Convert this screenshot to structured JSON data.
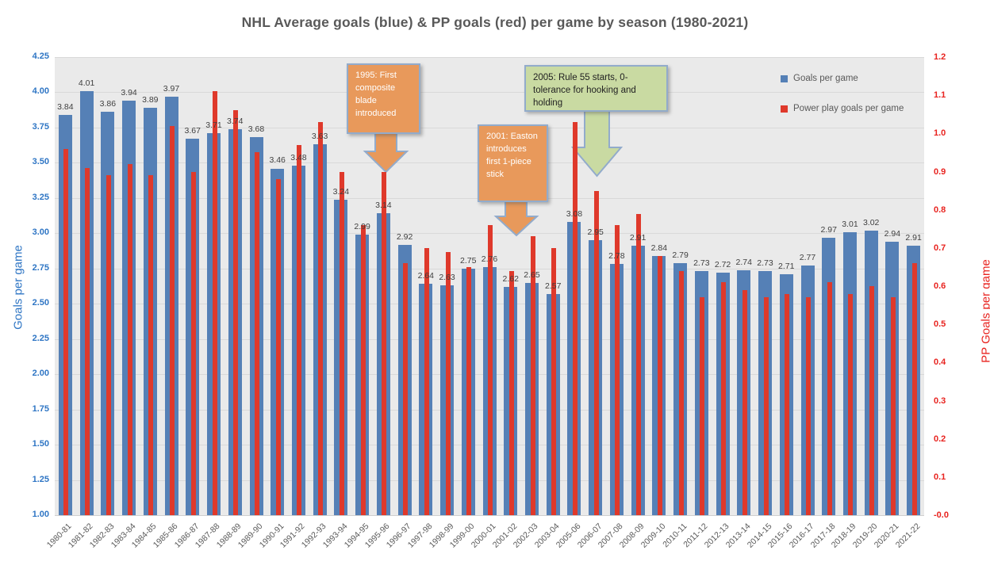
{
  "title": "NHL Average goals (blue) & PP goals (red) per game by season (1980-2021)",
  "colors": {
    "goals_bar": "#5580b6",
    "pp_bar": "#df392b",
    "left_axis": "#2e75c4",
    "right_axis": "#e8231f",
    "plot_bg": "#eaeaea",
    "gridline": "#d9d9d9",
    "title_text": "#595959",
    "data_label": "#3f3f3f",
    "annotation_orange": "#e8995b",
    "annotation_green": "#c9daa2",
    "annotation_border": "#92abcb"
  },
  "chart_data": {
    "type": "bar",
    "title": "NHL Average goals (blue) & PP goals (red) per game by season (1980-2021)",
    "categories": [
      "1980-81",
      "1981-82",
      "1982-83",
      "1983-84",
      "1984-85",
      "1985-86",
      "1986-87",
      "1987-88",
      "1988-89",
      "1989-90",
      "1990-91",
      "1991-92",
      "1992-93",
      "1993-94",
      "1994-95",
      "1995-96",
      "1996-97",
      "1997-98",
      "1998-99",
      "1999-00",
      "2000-01",
      "2001-02",
      "2002-03",
      "2003-04",
      "2005-06",
      "2006-07",
      "2007-08",
      "2008-09",
      "2009-10",
      "2010-11",
      "2011-12",
      "2012-13",
      "2013-14",
      "2014-15",
      "2015-16",
      "2016-17",
      "2017-18",
      "2018-19",
      "2019-20",
      "2020-21",
      "2021-22"
    ],
    "series": [
      {
        "name": "Goals per game",
        "axis": "left",
        "color": "#5580b6",
        "data_labels": true,
        "values": [
          3.84,
          4.01,
          3.86,
          3.94,
          3.89,
          3.97,
          3.67,
          3.71,
          3.74,
          3.68,
          3.46,
          3.48,
          3.63,
          3.24,
          2.99,
          3.14,
          2.92,
          2.64,
          2.63,
          2.75,
          2.76,
          2.62,
          2.65,
          2.57,
          3.08,
          2.95,
          2.78,
          2.91,
          2.84,
          2.79,
          2.73,
          2.72,
          2.74,
          2.73,
          2.71,
          2.77,
          2.97,
          3.01,
          3.02,
          2.94,
          2.91
        ]
      },
      {
        "name": "Power play goals per game",
        "axis": "right",
        "color": "#df392b",
        "data_labels": false,
        "values": [
          0.96,
          0.91,
          0.89,
          0.92,
          0.89,
          1.02,
          0.9,
          1.11,
          1.06,
          0.95,
          0.88,
          0.97,
          1.03,
          0.9,
          0.76,
          0.9,
          0.66,
          0.7,
          0.69,
          0.65,
          0.76,
          0.64,
          0.73,
          0.7,
          1.03,
          0.85,
          0.76,
          0.79,
          0.68,
          0.64,
          0.57,
          0.61,
          0.59,
          0.57,
          0.58,
          0.57,
          0.61,
          0.58,
          0.6,
          0.57,
          0.66
        ]
      }
    ],
    "left_axis": {
      "label": "Goals per game",
      "min": 1.0,
      "max": 4.25,
      "tick_step": 0.25
    },
    "right_axis": {
      "label": "PP Goals per game",
      "min": 0.0,
      "max": 1.2,
      "tick_step": 0.1
    },
    "legend": {
      "position": "top-right",
      "entries": [
        "Goals per game",
        "Power play goals per game"
      ]
    },
    "grid": "horizontal",
    "annotations": [
      {
        "id": "1995",
        "style": "orange",
        "text": "1995: First composite blade introduced"
      },
      {
        "id": "2001",
        "style": "orange",
        "text": "2001: Easton introduces first 1-piece stick"
      },
      {
        "id": "2005",
        "style": "green",
        "text": "2005: Rule 55 starts, 0-tolerance for hooking and holding"
      }
    ]
  }
}
